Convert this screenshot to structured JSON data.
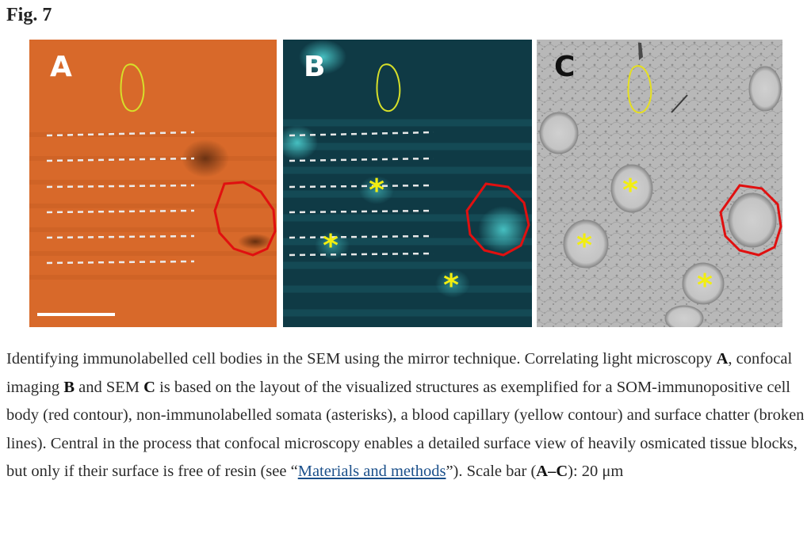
{
  "figure": {
    "label": "Fig. 7"
  },
  "panels": [
    {
      "label": "A",
      "kind": "light microscopy"
    },
    {
      "label": "B",
      "kind": "confocal imaging"
    },
    {
      "label": "C",
      "kind": "SEM"
    }
  ],
  "colors": {
    "panel_a_bg": "#d8692a",
    "panel_b_bg": "#0f3a45",
    "panel_c_bg": "#b5b5b5",
    "red_contour": "#e01010",
    "yellow_contour": "#e6e020",
    "asterisk": "#f2ee10",
    "dashes": "#e8e8e8",
    "link": "#1a4f8a"
  },
  "caption": {
    "part1": "Identifying immunolabelled cell bodies in the SEM using the mirror technique. Correlating light microscopy ",
    "ref_a": "A",
    "part2": ", confocal imaging ",
    "ref_b": "B",
    "part3": " and SEM ",
    "ref_c": "C",
    "part4": " is based on the layout of the visualized structures as exemplified for a SOM-immunopositive cell body (red contour), non-immunolabelled somata (asterisks), a blood capillary (yellow contour) and surface chatter (broken lines). Central in the process that confocal microscopy enables a detailed surface view of heavily osmicated tissue blocks, but only if their surface is free of resin (see “",
    "link_text": "Materials and methods",
    "part5": "”). Scale bar (",
    "scale_ref": "A–C",
    "part6": "): 20 μm"
  }
}
